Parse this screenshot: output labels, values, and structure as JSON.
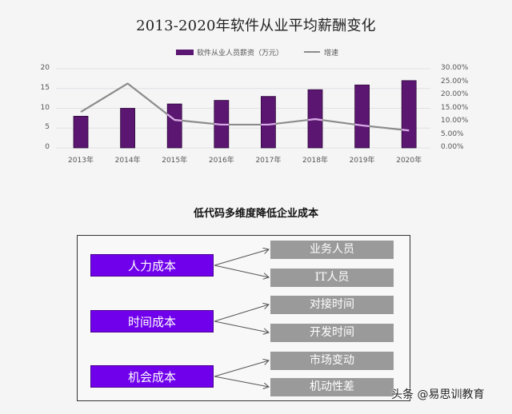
{
  "chart": {
    "title": "2013-2020年软件从业平均薪酬变化",
    "legend": {
      "bar_label": "软件从业人员薪资（万元）",
      "line_label": "增速"
    },
    "colors": {
      "bar": "#5a1670",
      "bar_border": "#2e0a3a",
      "line": "#8c8c8c",
      "line_highlight": "#d9a8e8",
      "grid": "#e2e2e4"
    },
    "left_axis_ticks": [
      "0",
      "5",
      "10",
      "15",
      "20"
    ],
    "right_axis_ticks": [
      "0.00%",
      "5.00%",
      "10.00%",
      "15.00%",
      "20.00%",
      "25.00%",
      "30.00%"
    ],
    "x_labels": [
      "2013年",
      "2014年",
      "2015年",
      "2016年",
      "2017年",
      "2018年",
      "2019年",
      "2020年"
    ]
  },
  "chart_data": {
    "type": "bar",
    "title": "2013-2020年软件从业平均薪酬变化",
    "categories": [
      "2013年",
      "2014年",
      "2015年",
      "2016年",
      "2017年",
      "2018年",
      "2019年",
      "2020年"
    ],
    "series": [
      {
        "name": "软件从业人员薪资（万元）",
        "type": "bar",
        "axis": "left",
        "values": [
          8,
          10,
          11.1,
          12,
          13,
          14.7,
          15.9,
          17
        ]
      },
      {
        "name": "增速",
        "type": "line",
        "axis": "right",
        "unit": "%",
        "values": [
          13.6,
          24.4,
          10.6,
          8.8,
          8.8,
          10.9,
          8.5,
          6.6
        ]
      }
    ],
    "xlabel": "",
    "ylabel": "",
    "ylim": [
      0,
      20
    ],
    "y2lim": [
      0,
      30
    ],
    "y_ticks": [
      0,
      5,
      10,
      15,
      20
    ],
    "y2_ticks": [
      "0.00%",
      "5.00%",
      "10.00%",
      "15.00%",
      "20.00%",
      "25.00%",
      "30.00%"
    ],
    "grid": true,
    "legend_position": "top"
  },
  "diagram": {
    "title": "低代码多维度降低企业成本",
    "colors": {
      "cost_box": "#7000ec",
      "item_box": "#9a9a9a",
      "arrow": "#555555"
    },
    "groups": [
      {
        "label": "人力成本",
        "items": [
          "业务人员",
          "IT人员"
        ]
      },
      {
        "label": "时间成本",
        "items": [
          "对接时间",
          "开发时间"
        ]
      },
      {
        "label": "机会成本",
        "items": [
          "市场变动",
          "机动性差"
        ]
      }
    ]
  },
  "credit": "头条 @易思训教育"
}
